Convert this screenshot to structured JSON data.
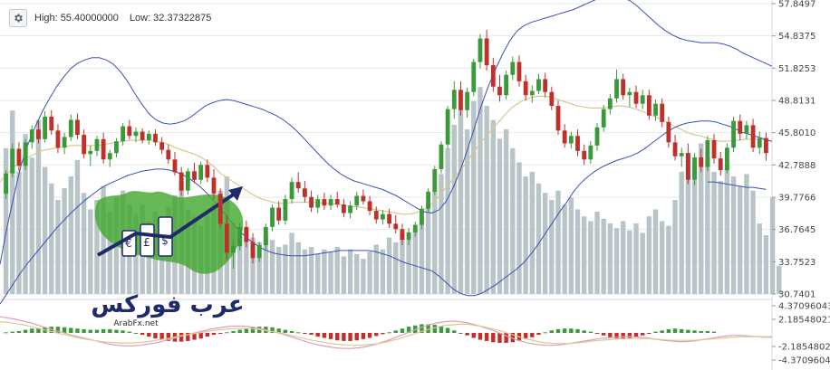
{
  "header": {
    "high_label": "High:",
    "high_value": "55.40000000",
    "low_label": "Low:",
    "low_value": "32.37322875"
  },
  "icons": {
    "settings": "gear-icon"
  },
  "watermark": {
    "arabic": "عرب فوركس",
    "latin": "ArabFx.net"
  },
  "colors": {
    "bull": "#3a9a3a",
    "bear": "#c0302a",
    "volume": "#b8c4c8",
    "bollinger": "#3b4fb8",
    "ma": "#d9c88f",
    "macd_line": "#d9a0c0",
    "signal_line": "#e0c890"
  },
  "chart_data": {
    "type": "candlestick",
    "price_axis": [
      "57.8497",
      "54.8375",
      "51.8253",
      "48.8131",
      "45.8010",
      "42.7888",
      "39.7766",
      "36.7645",
      "33.7523",
      "30.7401"
    ],
    "price_range": [
      30.7401,
      57.8497
    ],
    "macd_axis": [
      "4.37096043",
      "2.18548021",
      "-2.18548021",
      "-4.37096043"
    ],
    "macd_range": [
      -4.37096043,
      4.37096043
    ],
    "high": 55.4,
    "low": 32.37322875,
    "grid": true,
    "candles": [
      [
        40.1,
        42.3,
        39.6,
        42.0
      ],
      [
        42.0,
        44.8,
        41.6,
        44.3
      ],
      [
        44.3,
        44.9,
        42.2,
        42.7
      ],
      [
        42.7,
        45.2,
        42.3,
        44.9
      ],
      [
        44.9,
        46.5,
        44.3,
        46.1
      ],
      [
        46.1,
        46.9,
        44.8,
        45.2
      ],
      [
        45.2,
        47.8,
        44.9,
        47.3
      ],
      [
        47.3,
        47.9,
        45.6,
        46.0
      ],
      [
        46.0,
        46.6,
        43.9,
        44.4
      ],
      [
        44.4,
        45.8,
        43.8,
        45.4
      ],
      [
        45.4,
        47.5,
        45.0,
        47.0
      ],
      [
        47.0,
        47.6,
        45.2,
        45.6
      ],
      [
        45.6,
        46.1,
        43.4,
        43.8
      ],
      [
        43.8,
        44.6,
        42.7,
        44.1
      ],
      [
        44.1,
        45.5,
        43.6,
        45.2
      ],
      [
        45.2,
        45.8,
        42.9,
        43.3
      ],
      [
        43.3,
        44.2,
        42.6,
        43.9
      ],
      [
        43.9,
        45.3,
        43.5,
        45.0
      ],
      [
        45.0,
        46.7,
        44.6,
        46.4
      ],
      [
        46.4,
        47.0,
        45.2,
        45.5
      ],
      [
        45.5,
        46.3,
        44.9,
        45.9
      ],
      [
        45.9,
        46.2,
        44.8,
        45.1
      ],
      [
        45.1,
        46.0,
        44.7,
        45.7
      ],
      [
        45.7,
        46.1,
        44.6,
        44.9
      ],
      [
        44.9,
        45.4,
        43.8,
        44.2
      ],
      [
        44.2,
        44.7,
        42.9,
        43.3
      ],
      [
        43.3,
        44.0,
        41.8,
        42.1
      ],
      [
        42.1,
        42.6,
        39.9,
        40.4
      ],
      [
        40.4,
        42.5,
        40.0,
        42.2
      ],
      [
        42.2,
        43.0,
        41.1,
        41.4
      ],
      [
        41.4,
        43.1,
        41.0,
        42.8
      ],
      [
        42.8,
        43.3,
        41.2,
        41.6
      ],
      [
        41.6,
        42.4,
        39.6,
        40.1
      ],
      [
        40.1,
        40.6,
        36.9,
        37.3
      ],
      [
        37.3,
        38.1,
        34.0,
        34.6
      ],
      [
        34.6,
        35.8,
        33.1,
        35.2
      ],
      [
        35.2,
        37.4,
        34.8,
        37.0
      ],
      [
        37.0,
        37.6,
        35.1,
        35.6
      ],
      [
        35.6,
        36.4,
        33.6,
        34.1
      ],
      [
        34.1,
        35.6,
        33.7,
        35.3
      ],
      [
        35.3,
        37.3,
        34.9,
        37.0
      ],
      [
        37.0,
        39.1,
        36.6,
        38.8
      ],
      [
        38.8,
        39.4,
        37.2,
        37.6
      ],
      [
        37.6,
        40.0,
        37.2,
        39.6
      ],
      [
        39.6,
        41.6,
        39.2,
        41.2
      ],
      [
        41.2,
        42.1,
        40.2,
        40.6
      ],
      [
        40.6,
        41.3,
        39.3,
        39.8
      ],
      [
        39.8,
        40.4,
        38.4,
        38.8
      ],
      [
        38.8,
        40.0,
        38.3,
        39.6
      ],
      [
        39.6,
        40.2,
        38.6,
        39.0
      ],
      [
        39.0,
        40.0,
        38.6,
        39.6
      ],
      [
        39.6,
        40.3,
        38.8,
        39.1
      ],
      [
        39.1,
        39.6,
        37.9,
        38.3
      ],
      [
        38.3,
        39.4,
        37.8,
        39.0
      ],
      [
        39.0,
        40.3,
        38.6,
        39.9
      ],
      [
        39.9,
        40.5,
        39.1,
        39.4
      ],
      [
        39.4,
        39.9,
        38.1,
        38.5
      ],
      [
        38.5,
        38.9,
        37.3,
        37.7
      ],
      [
        37.7,
        38.6,
        37.2,
        38.2
      ],
      [
        38.2,
        38.7,
        36.9,
        37.3
      ],
      [
        37.3,
        38.1,
        36.4,
        36.8
      ],
      [
        36.8,
        37.3,
        35.3,
        35.8
      ],
      [
        35.8,
        36.9,
        35.3,
        36.5
      ],
      [
        36.5,
        37.5,
        36.1,
        37.2
      ],
      [
        37.2,
        39.0,
        36.8,
        38.7
      ],
      [
        38.7,
        40.6,
        38.3,
        40.3
      ],
      [
        40.3,
        42.7,
        40.0,
        42.4
      ],
      [
        42.4,
        45.0,
        42.0,
        44.7
      ],
      [
        44.7,
        48.3,
        44.3,
        48.0
      ],
      [
        48.0,
        50.6,
        47.1,
        49.8
      ],
      [
        49.8,
        50.6,
        47.4,
        47.9
      ],
      [
        47.9,
        50.0,
        47.2,
        49.6
      ],
      [
        49.6,
        52.7,
        49.2,
        52.4
      ],
      [
        52.4,
        55.0,
        51.8,
        54.6
      ],
      [
        54.6,
        55.4,
        51.6,
        52.1
      ],
      [
        52.1,
        52.8,
        49.6,
        50.1
      ],
      [
        50.1,
        51.2,
        48.7,
        49.3
      ],
      [
        49.3,
        51.6,
        48.9,
        51.2
      ],
      [
        51.2,
        52.9,
        50.7,
        52.4
      ],
      [
        52.4,
        53.0,
        50.1,
        50.6
      ],
      [
        50.6,
        51.2,
        48.8,
        49.3
      ],
      [
        49.3,
        50.2,
        48.6,
        49.7
      ],
      [
        49.7,
        51.3,
        49.4,
        50.8
      ],
      [
        50.8,
        51.4,
        49.1,
        49.6
      ],
      [
        49.6,
        50.1,
        47.9,
        48.3
      ],
      [
        48.3,
        48.8,
        45.6,
        46.0
      ],
      [
        46.0,
        46.6,
        44.4,
        44.8
      ],
      [
        44.8,
        45.9,
        44.3,
        45.5
      ],
      [
        45.5,
        46.1,
        43.6,
        44.1
      ],
      [
        44.1,
        44.7,
        42.8,
        43.3
      ],
      [
        43.3,
        45.0,
        42.9,
        44.6
      ],
      [
        44.6,
        46.7,
        44.1,
        46.3
      ],
      [
        46.3,
        48.4,
        45.9,
        48.0
      ],
      [
        48.0,
        49.4,
        47.5,
        49.0
      ],
      [
        49.0,
        51.7,
        48.6,
        50.8
      ],
      [
        50.8,
        51.3,
        48.9,
        49.3
      ],
      [
        49.3,
        50.0,
        48.2,
        49.6
      ],
      [
        49.6,
        50.2,
        48.1,
        48.5
      ],
      [
        48.5,
        49.8,
        48.0,
        49.3
      ],
      [
        49.3,
        49.8,
        47.0,
        47.4
      ],
      [
        47.4,
        48.9,
        46.9,
        48.5
      ],
      [
        48.5,
        49.0,
        46.3,
        46.8
      ],
      [
        46.8,
        47.3,
        44.4,
        44.9
      ],
      [
        44.9,
        45.6,
        43.2,
        43.6
      ],
      [
        43.6,
        44.4,
        42.6,
        43.9
      ],
      [
        43.9,
        44.8,
        41.0,
        41.4
      ],
      [
        41.4,
        43.9,
        40.9,
        43.5
      ],
      [
        43.5,
        44.3,
        42.1,
        42.6
      ],
      [
        42.6,
        45.5,
        42.2,
        45.1
      ],
      [
        45.1,
        45.7,
        42.9,
        43.4
      ],
      [
        43.4,
        44.0,
        41.8,
        42.3
      ],
      [
        42.3,
        44.8,
        42.0,
        44.4
      ],
      [
        44.4,
        47.3,
        44.0,
        46.9
      ],
      [
        46.9,
        47.5,
        45.1,
        45.7
      ],
      [
        45.7,
        46.9,
        45.2,
        46.5
      ],
      [
        46.5,
        47.1,
        44.0,
        44.4
      ],
      [
        44.4,
        45.9,
        43.8,
        45.3
      ],
      [
        45.3,
        45.8,
        43.2,
        43.9
      ]
    ],
    "volume": [
      0.62,
      0.78,
      0.52,
      0.68,
      0.58,
      0.74,
      0.54,
      0.47,
      0.4,
      0.45,
      0.5,
      0.57,
      0.43,
      0.36,
      0.4,
      0.46,
      0.35,
      0.41,
      0.44,
      0.38,
      0.34,
      0.38,
      0.31,
      0.35,
      0.32,
      0.37,
      0.42,
      0.48,
      0.36,
      0.33,
      0.29,
      0.34,
      0.38,
      0.44,
      0.5,
      0.3,
      0.26,
      0.28,
      0.24,
      0.22,
      0.25,
      0.23,
      0.2,
      0.21,
      0.26,
      0.22,
      0.19,
      0.2,
      0.17,
      0.19,
      0.18,
      0.2,
      0.16,
      0.19,
      0.17,
      0.15,
      0.18,
      0.21,
      0.19,
      0.24,
      0.22,
      0.26,
      0.23,
      0.27,
      0.33,
      0.38,
      0.44,
      0.51,
      0.62,
      0.72,
      0.78,
      0.7,
      0.82,
      0.88,
      0.8,
      0.74,
      0.66,
      0.7,
      0.62,
      0.56,
      0.5,
      0.52,
      0.47,
      0.43,
      0.4,
      0.44,
      0.38,
      0.41,
      0.36,
      0.33,
      0.31,
      0.35,
      0.32,
      0.3,
      0.28,
      0.31,
      0.27,
      0.3,
      0.26,
      0.33,
      0.36,
      0.31,
      0.29,
      0.4,
      0.52,
      0.6,
      0.56,
      0.64,
      0.58,
      0.52,
      0.48,
      0.55,
      0.5,
      0.46,
      0.51,
      0.44,
      0.3,
      0.25,
      0.41,
      0.12
    ],
    "ma": [
      41.2,
      41.9,
      42.5,
      43.0,
      43.4,
      43.7,
      44.0,
      44.2,
      44.3,
      44.4,
      44.5,
      44.6,
      44.6,
      44.6,
      44.6,
      44.6,
      44.7,
      44.8,
      44.9,
      45.0,
      45.1,
      45.1,
      45.1,
      45.1,
      45.0,
      44.9,
      44.7,
      44.4,
      44.2,
      44.0,
      43.8,
      43.5,
      43.1,
      42.6,
      42.0,
      41.6,
      41.2,
      40.8,
      40.4,
      40.0,
      39.7,
      39.5,
      39.3,
      39.2,
      39.2,
      39.3,
      39.3,
      39.3,
      39.3,
      39.3,
      39.2,
      39.2,
      39.1,
      39.0,
      38.9,
      38.9,
      38.8,
      38.7,
      38.6,
      38.5,
      38.4,
      38.3,
      38.2,
      38.2,
      38.3,
      38.5,
      38.9,
      39.4,
      40.1,
      40.9,
      41.6,
      42.3,
      43.1,
      44.0,
      44.8,
      45.5,
      46.2,
      46.9,
      47.6,
      48.2,
      48.6,
      48.9,
      49.1,
      49.2,
      49.2,
      49.1,
      48.9,
      48.7,
      48.5,
      48.3,
      48.2,
      48.1,
      48.1,
      48.1,
      48.2,
      48.3,
      48.3,
      48.2,
      48.0,
      47.8,
      47.5,
      47.3,
      47.0,
      46.7,
      46.4,
      46.1,
      45.8,
      45.6,
      45.5,
      45.3,
      45.1,
      45.0,
      45.0,
      45.1,
      45.1,
      45.2,
      45.2,
      45.2,
      45.1,
      45.0
    ],
    "bb_upper": [
      33.5,
      37.0,
      40.0,
      42.8,
      44.8,
      46.4,
      47.8,
      49.0,
      50.1,
      51.0,
      51.8,
      52.3,
      52.6,
      52.8,
      52.8,
      52.6,
      52.2,
      51.5,
      50.6,
      49.5,
      48.5,
      47.6,
      47.0,
      46.7,
      46.6,
      46.7,
      46.9,
      47.3,
      47.8,
      48.3,
      48.6,
      48.8,
      48.9,
      48.8,
      48.6,
      48.4,
      48.2,
      48.0,
      47.7,
      47.4,
      47.0,
      46.5,
      45.9,
      45.2,
      44.5,
      43.8,
      43.1,
      42.5,
      42.0,
      41.6,
      41.3,
      41.1,
      40.9,
      40.7,
      40.5,
      40.2,
      39.9,
      39.5,
      39.1,
      38.7,
      38.4,
      38.3,
      38.6,
      39.4,
      40.7,
      42.3,
      44.2,
      46.3,
      48.4,
      50.2,
      51.8,
      53.2,
      54.4,
      55.3,
      55.8,
      56.1,
      56.3,
      56.5,
      56.7,
      56.9,
      57.1,
      57.3,
      57.6,
      57.9,
      58.2,
      58.4,
      58.5,
      58.5,
      58.4,
      58.1,
      57.6,
      57.0,
      56.4,
      55.8,
      55.3,
      54.9,
      54.6,
      54.4,
      54.3,
      54.2,
      54.2,
      54.2,
      54.1,
      53.9,
      53.6,
      53.2,
      52.9,
      52.6,
      52.3,
      52.0
    ],
    "bb_lower": [
      29.8,
      30.8,
      31.8,
      32.8,
      33.7,
      34.5,
      35.3,
      36.1,
      36.9,
      37.6,
      38.3,
      38.9,
      39.5,
      40.0,
      40.5,
      40.9,
      41.2,
      41.5,
      41.8,
      42.0,
      42.2,
      42.3,
      42.4,
      42.4,
      42.3,
      42.1,
      41.8,
      41.4,
      40.9,
      40.3,
      39.6,
      38.8,
      38.0,
      37.2,
      36.5,
      35.9,
      35.4,
      35.0,
      34.7,
      34.5,
      34.4,
      34.3,
      34.3,
      34.3,
      34.4,
      34.5,
      34.6,
      34.7,
      34.8,
      34.8,
      34.8,
      34.8,
      34.8,
      34.7,
      34.5,
      34.3,
      34.0,
      33.7,
      33.5,
      33.3,
      33.1,
      32.9,
      32.4,
      31.8,
      31.2,
      30.8,
      30.6,
      30.6,
      30.8,
      31.2,
      31.6,
      32.1,
      32.6,
      33.1,
      33.7,
      34.5,
      35.4,
      36.4,
      37.4,
      38.4,
      39.3,
      40.3,
      41.1,
      41.7,
      42.2,
      42.6,
      42.9,
      43.2,
      43.4,
      43.6,
      43.9,
      44.3,
      44.8,
      45.3,
      45.8,
      46.2,
      46.5,
      46.7,
      46.8,
      46.9,
      46.9,
      46.8,
      46.6,
      46.4,
      46.1,
      45.8,
      45.6,
      45.4,
      45.2,
      45.0
    ],
    "bb_lower_tail": [
      41.2,
      41.2,
      41.1,
      41.0,
      40.9,
      40.8,
      40.7,
      40.7,
      40.6,
      40.5
    ],
    "macd_hist": [
      0.1,
      0.2,
      0.3,
      0.5,
      0.7,
      0.8,
      0.9,
      1.0,
      1.0,
      0.9,
      0.8,
      0.7,
      0.6,
      0.5,
      0.5,
      0.6,
      0.6,
      0.5,
      0.4,
      0.2,
      0.0,
      -0.3,
      -0.6,
      -0.9,
      -1.1,
      -1.3,
      -1.4,
      -1.4,
      -1.3,
      -1.1,
      -0.9,
      -0.6,
      -0.3,
      -0.1,
      0.1,
      0.3,
      0.5,
      0.7,
      0.9,
      1.0,
      1.0,
      0.9,
      0.7,
      0.5,
      0.3,
      0.1,
      -0.1,
      -0.3,
      -0.6,
      -0.8,
      -1.0,
      -1.2,
      -1.3,
      -1.3,
      -1.2,
      -1.0,
      -0.8,
      -0.5,
      -0.2,
      0.1,
      0.4,
      0.7,
      1.0,
      1.2,
      1.4,
      1.4,
      1.3,
      1.1,
      0.8,
      0.4,
      0.0,
      -0.4,
      -0.8,
      -1.1,
      -1.3,
      -1.5,
      -1.6,
      -1.6,
      -1.5,
      -1.3,
      -1.0,
      -0.7,
      -0.3,
      0.1,
      0.4,
      0.6,
      0.7,
      0.7,
      0.6,
      0.4,
      0.2,
      -0.1,
      -0.4,
      -0.7,
      -0.9,
      -1.0,
      -0.9,
      -0.7,
      -0.4,
      -0.1,
      0.2,
      0.4,
      0.6,
      0.7,
      0.6,
      0.5,
      0.4,
      0.3,
      0.3,
      0.2
    ],
    "macd_line": [
      2.6,
      2.4,
      2.2,
      1.9,
      1.6,
      1.2,
      0.8,
      0.4,
      0.1,
      -0.3,
      -0.6,
      -0.9,
      -1.2,
      -1.5,
      -1.8,
      -2.0,
      -2.1,
      -2.1,
      -2.0,
      -1.8,
      -1.6,
      -1.3,
      -1.0,
      -0.6,
      -0.3,
      0.0,
      0.3,
      0.6,
      0.8,
      1.0,
      1.1,
      1.1,
      1.0,
      0.8,
      0.5,
      0.2,
      -0.1,
      -0.5,
      -0.9,
      -1.3,
      -1.7,
      -2.0,
      -2.2,
      -2.4,
      -2.5,
      -2.5,
      -2.4,
      -2.2,
      -1.9,
      -1.5,
      -1.1,
      -0.6,
      -0.1,
      0.4,
      0.9,
      1.3,
      1.6,
      1.8,
      1.9,
      1.8,
      1.6,
      1.3,
      0.9,
      0.5,
      0.0,
      -0.5,
      -1.0,
      -1.4,
      -1.7,
      -1.9,
      -2.0,
      -2.0,
      -1.9,
      -1.7,
      -1.5,
      -1.3,
      -1.1,
      -0.9,
      -0.8,
      -0.7,
      -0.6,
      -0.6,
      -0.7,
      -0.8,
      -1.0,
      -1.2,
      -1.3,
      -1.4,
      -1.4,
      -1.3,
      -1.1,
      -0.9,
      -0.7,
      -0.5,
      -0.4,
      -0.4,
      -0.5,
      -0.6,
      -0.7,
      -0.7
    ],
    "signal_line": [
      1.8,
      1.7,
      1.5,
      1.3,
      1.0,
      0.7,
      0.4,
      0.1,
      -0.2,
      -0.5,
      -0.8,
      -1.0,
      -1.2,
      -1.4,
      -1.5,
      -1.6,
      -1.6,
      -1.6,
      -1.5,
      -1.4,
      -1.2,
      -1.0,
      -0.8,
      -0.5,
      -0.3,
      -0.1,
      0.1,
      0.3,
      0.5,
      0.6,
      0.7,
      0.7,
      0.7,
      0.6,
      0.4,
      0.2,
      0.0,
      -0.3,
      -0.6,
      -0.9,
      -1.2,
      -1.4,
      -1.6,
      -1.8,
      -1.9,
      -2.0,
      -2.0,
      -1.9,
      -1.8,
      -1.6,
      -1.3,
      -1.0,
      -0.6,
      -0.2,
      0.2,
      0.6,
      0.9,
      1.2,
      1.3,
      1.4,
      1.4,
      1.2,
      1.0,
      0.7,
      0.4,
      0.0,
      -0.4,
      -0.8,
      -1.1,
      -1.4,
      -1.6,
      -1.7,
      -1.7,
      -1.7,
      -1.6,
      -1.5,
      -1.3,
      -1.2,
      -1.1,
      -1.0,
      -0.9,
      -0.9,
      -0.9,
      -0.9,
      -1.0,
      -1.1,
      -1.2,
      -1.2,
      -1.2,
      -1.2,
      -1.1,
      -1.0,
      -0.9,
      -0.8,
      -0.7,
      -0.6,
      -0.6,
      -0.6,
      -0.6,
      -0.6
    ]
  }
}
